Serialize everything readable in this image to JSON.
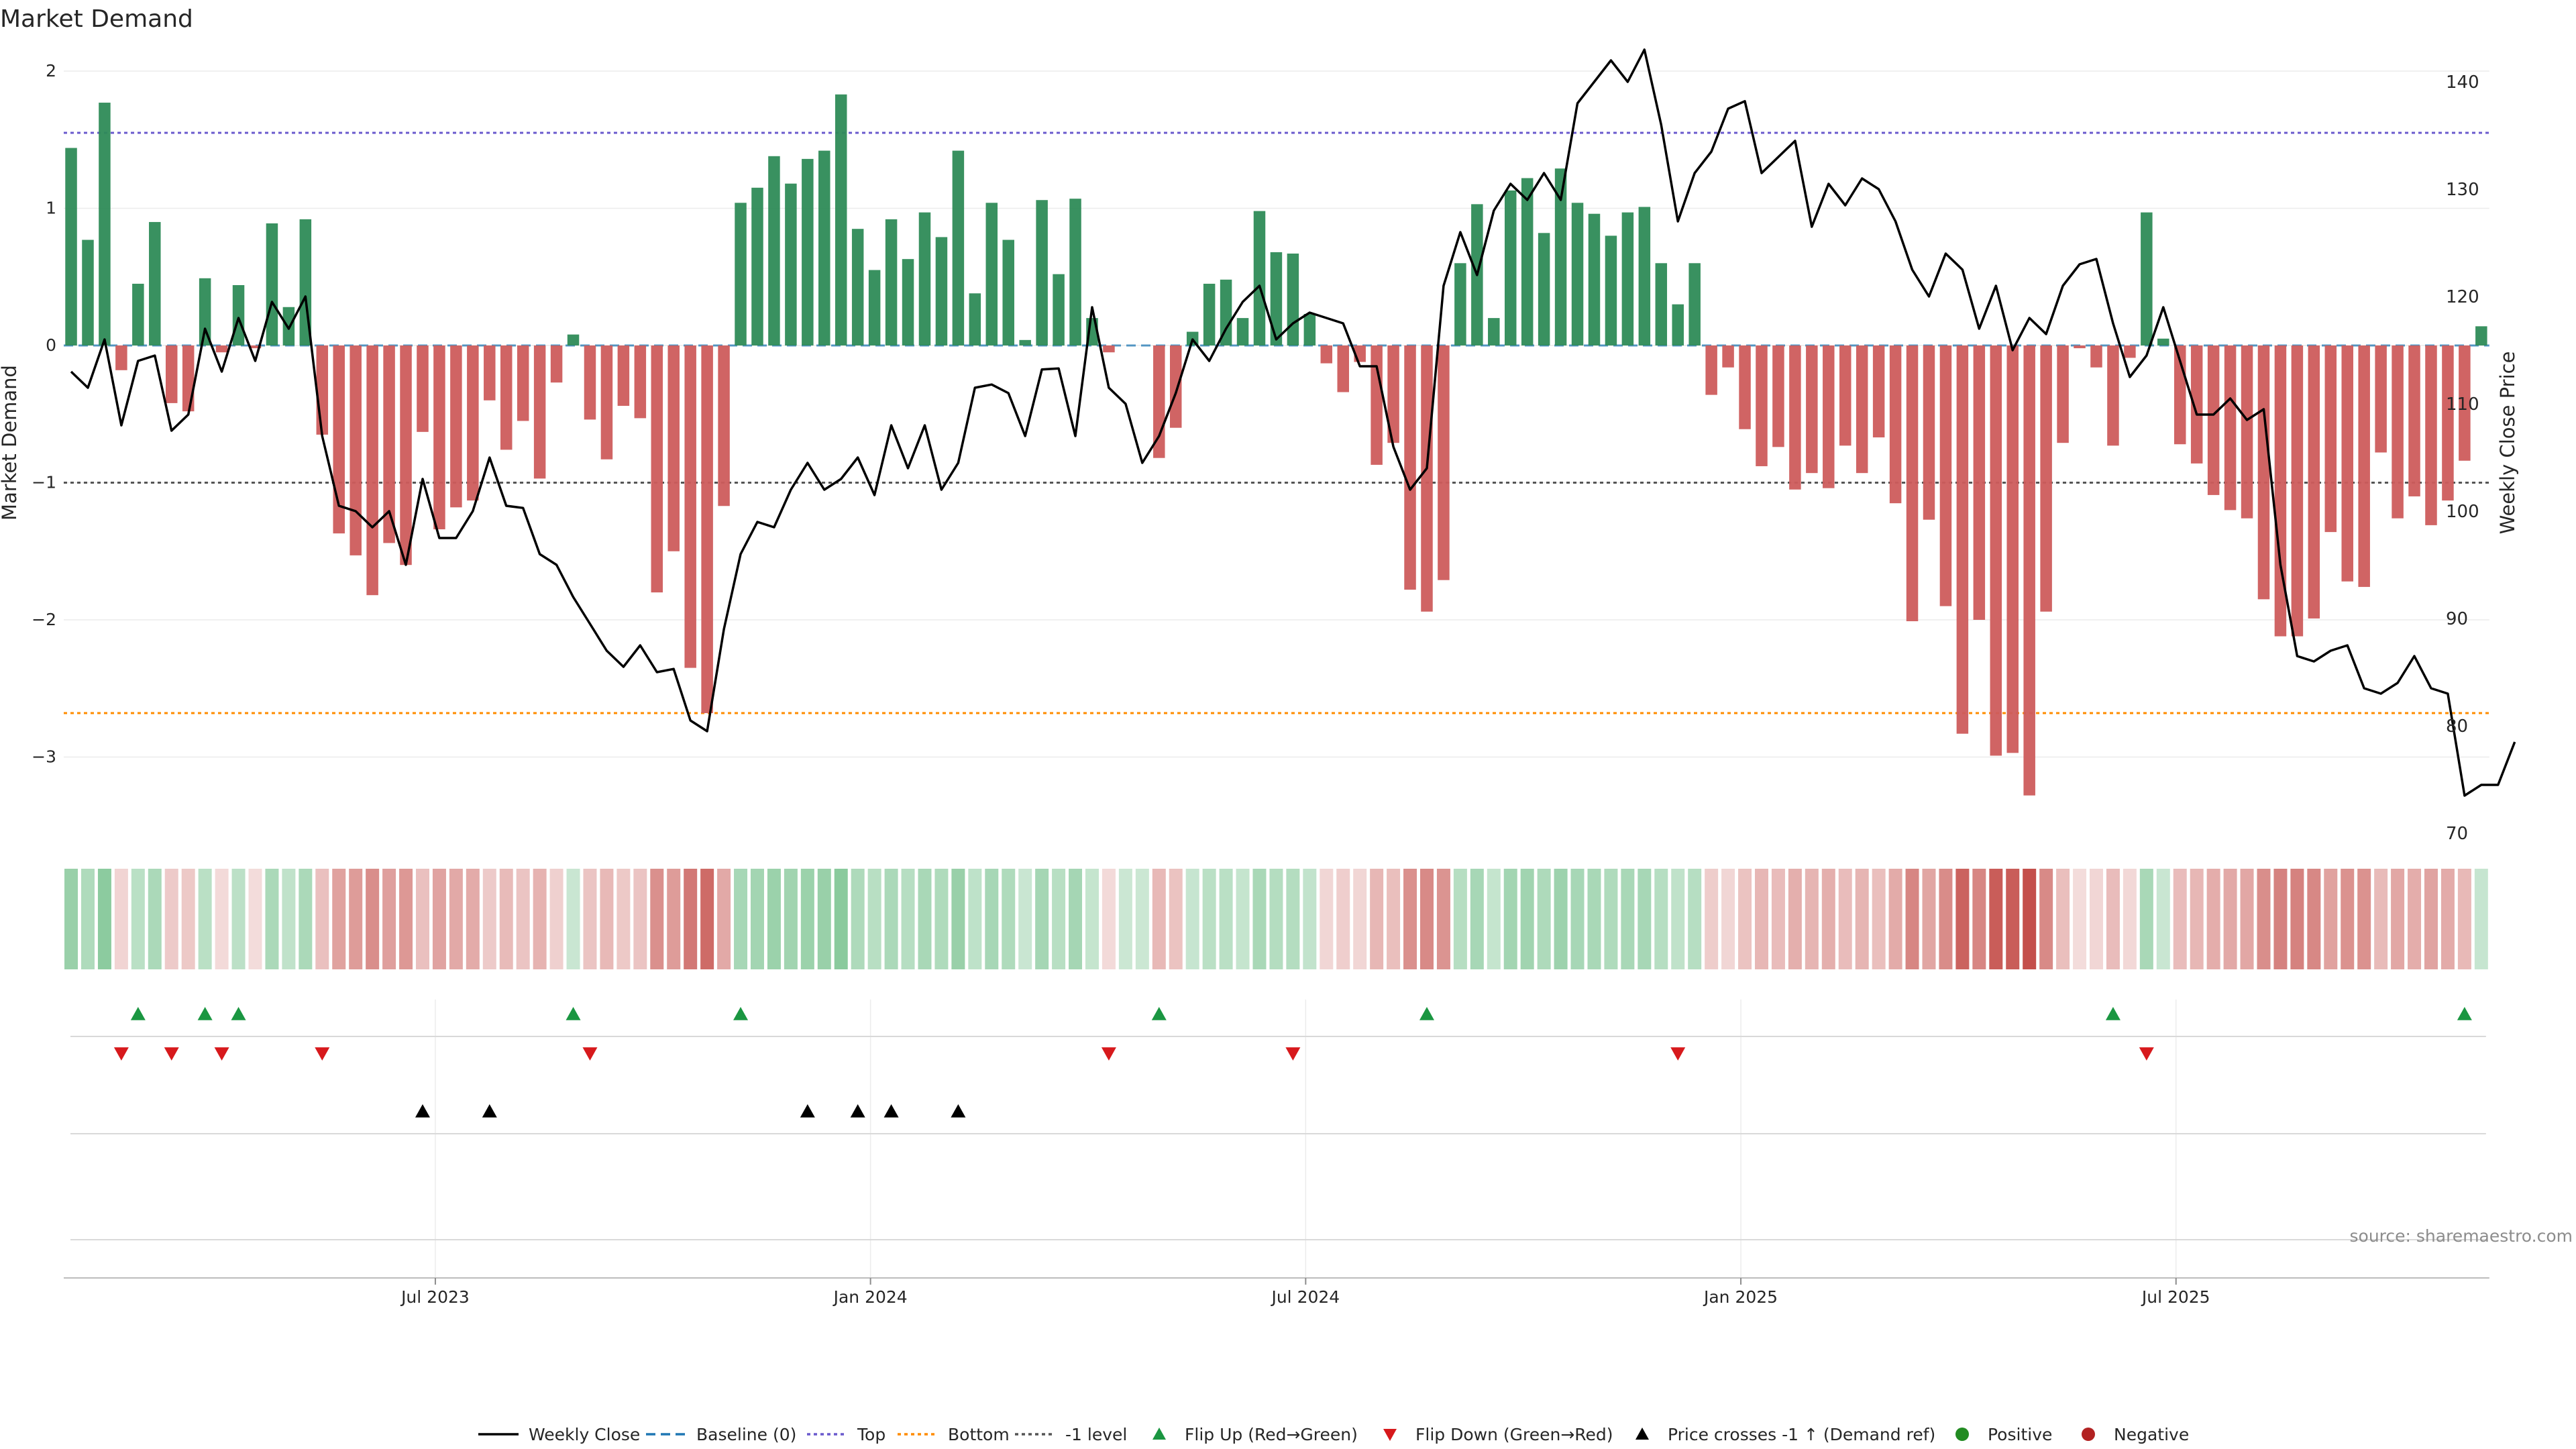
{
  "chart_data": {
    "type": "bar",
    "title": "Market Demand",
    "ylabel": "Market Demand",
    "y2label": "Weekly Close Price",
    "ylim": [
      -3.55,
      2.05
    ],
    "y2lim": [
      70,
      141
    ],
    "y_ticks": [
      "2",
      "1",
      "0",
      "−1",
      "−2",
      "−3"
    ],
    "y2_ticks": [
      "140",
      "130",
      "120",
      "110",
      "100",
      "90",
      "80",
      "70"
    ],
    "x_ticks": [
      "Jul 2023",
      "Jan 2024",
      "Jul 2024",
      "Jan 2025",
      "Jul 2025"
    ],
    "x_tick_weeks": [
      22,
      48,
      74,
      100,
      126
    ],
    "reference_lines": {
      "top": 1.55,
      "bottom": -2.68,
      "minus_one": -1.0
    },
    "demand": [
      1.44,
      0.77,
      1.77,
      -0.18,
      0.45,
      0.9,
      -0.42,
      -0.48,
      0.49,
      -0.05,
      0.44,
      -0.02,
      0.89,
      0.28,
      0.92,
      -0.65,
      -1.37,
      -1.53,
      -1.82,
      -1.44,
      -1.6,
      -0.63,
      -1.34,
      -1.18,
      -1.13,
      -0.4,
      -0.76,
      -0.55,
      -0.97,
      -0.27,
      0.08,
      -0.54,
      -0.83,
      -0.44,
      -0.53,
      -1.8,
      -1.5,
      -2.35,
      -2.68,
      -1.17,
      1.04,
      1.15,
      1.38,
      1.18,
      1.36,
      1.42,
      1.83,
      0.85,
      0.55,
      0.92,
      0.63,
      0.97,
      0.79,
      1.42,
      0.38,
      1.04,
      0.77,
      0.04,
      1.06,
      0.52,
      1.07,
      0.2,
      -0.05,
      0,
      0,
      -0.82,
      -0.6,
      0.1,
      0.45,
      0.48,
      0.2,
      0.98,
      0.68,
      0.67,
      0.23,
      -0.13,
      -0.34,
      -0.12,
      -0.87,
      -0.71,
      -1.78,
      -1.94,
      -1.71,
      0.6,
      1.03,
      0.2,
      1.13,
      1.22,
      0.82,
      1.29,
      1.04,
      0.96,
      0.8,
      0.97,
      1.01,
      0.6,
      0.3,
      0.6,
      -0.36,
      -0.16,
      -0.61,
      -0.88,
      -0.74,
      -1.05,
      -0.93,
      -1.04,
      -0.73,
      -0.93,
      -0.67,
      -1.15,
      -2.01,
      -1.27,
      -1.9,
      -2.83,
      -2.0,
      -2.99,
      -2.97,
      -3.28,
      -1.94,
      -0.71,
      -0.02,
      -0.16,
      -0.73,
      -0.09,
      0.97,
      0.05,
      -0.72,
      -0.86,
      -1.09,
      -1.2,
      -1.26,
      -1.85,
      -2.12,
      -2.12,
      -1.99,
      -1.36,
      -1.72,
      -1.76,
      -0.78,
      -1.26,
      -1.1,
      -1.31,
      -1.13,
      -0.84,
      0.14
    ],
    "price": [
      113,
      111.5,
      116,
      108,
      114,
      114.5,
      107.5,
      109,
      117,
      113,
      118,
      114,
      119.5,
      117,
      120,
      107,
      100.5,
      100,
      98.5,
      100,
      95,
      103,
      97.5,
      97.5,
      100,
      105,
      100.5,
      100.3,
      96,
      95,
      92,
      89.5,
      87,
      85.5,
      87.5,
      85,
      85.3,
      80.5,
      79.5,
      89,
      96,
      99,
      98.5,
      102,
      104.5,
      102,
      103,
      105,
      101.5,
      108,
      104,
      108,
      102,
      104.5,
      111.5,
      111.8,
      111,
      107,
      113.2,
      113.3,
      107,
      119,
      111.5,
      110,
      104.5,
      107,
      111,
      116,
      114,
      117,
      119.5,
      121,
      116,
      117.5,
      118.5,
      118,
      117.5,
      113.5,
      113.5,
      106,
      102,
      104,
      121,
      126,
      122,
      128,
      130.5,
      129,
      131.5,
      129,
      138,
      140,
      142,
      140,
      143,
      136,
      127,
      131.5,
      133.5,
      137.5,
      138.2,
      131.5,
      133,
      134.5,
      126.5,
      130.5,
      128.5,
      131,
      130,
      127,
      122.5,
      120,
      124,
      122.5,
      117,
      121,
      115,
      118,
      116.5,
      121,
      123,
      123.5,
      117.5,
      112.5,
      114.5,
      119,
      114,
      109,
      109,
      110.5,
      108.5,
      109.5,
      95,
      86.5,
      86,
      87,
      87.5,
      83.5,
      83,
      84,
      86.5,
      83.5,
      83,
      73.5,
      74.5,
      74.5,
      78.5
    ],
    "flip_up_weeks": [
      4,
      8,
      10,
      30,
      40,
      65,
      81,
      122,
      143
    ],
    "flip_down_weeks": [
      3,
      6,
      9,
      15,
      31,
      62,
      73,
      96,
      124
    ],
    "price_cross_weeks": [
      21,
      25,
      44,
      47,
      49,
      53
    ],
    "legend": [
      "Weekly Close",
      "Baseline (0)",
      "Top",
      "Bottom",
      "-1 level",
      "Flip Up (Red→Green)",
      "Flip Down (Green→Red)",
      "Price crosses -1 ↑ (Demand ref)",
      "Positive",
      "Negative"
    ],
    "source": "source: sharemaestro.com"
  },
  "colors": {
    "positive": "#2e8b57",
    "negative": "#cd5c5c",
    "price": "#000000",
    "top_line": "#6a5acd",
    "bottom_line": "#ff8c00",
    "minus_one_line": "#555555",
    "baseline": "#1f77b4",
    "flip_up": "#1a9641",
    "flip_down": "#d7191c",
    "cross": "#000000",
    "positive_dot": "#228b22",
    "negative_dot": "#b22222"
  }
}
